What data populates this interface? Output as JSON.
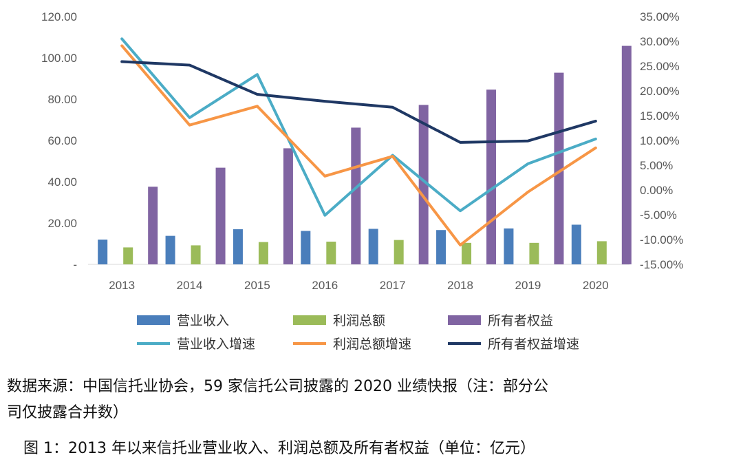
{
  "chart_data": {
    "type": "bar+line",
    "categories": [
      "2013",
      "2014",
      "2015",
      "2016",
      "2017",
      "2018",
      "2019",
      "2020"
    ],
    "bar_series": [
      {
        "name": "营业收入",
        "color": "#4A7EBB",
        "values": [
          12.0,
          13.8,
          17.0,
          16.2,
          17.2,
          16.6,
          17.4,
          19.2
        ]
      },
      {
        "name": "利润总额",
        "color": "#9BBB59",
        "values": [
          8.2,
          9.2,
          10.8,
          11.0,
          11.8,
          10.4,
          10.4,
          11.2
        ]
      },
      {
        "name": "所有者权益",
        "color": "#8064A2",
        "values": [
          37.6,
          46.8,
          56.2,
          66.2,
          77.2,
          84.6,
          92.8,
          105.8
        ]
      }
    ],
    "line_series": [
      {
        "name": "营业收入增速",
        "color": "#4BACC6",
        "values": [
          30.5,
          14.6,
          23.3,
          -5.1,
          7.0,
          -4.2,
          5.3,
          10.3
        ]
      },
      {
        "name": "利润总额增速",
        "color": "#F79646",
        "values": [
          29.1,
          13.1,
          16.9,
          2.8,
          6.8,
          -11.1,
          -0.4,
          8.5
        ]
      },
      {
        "name": "所有者权益增速",
        "color": "#1F3864",
        "values": [
          25.9,
          25.2,
          19.3,
          17.9,
          16.7,
          9.6,
          9.9,
          13.9
        ]
      }
    ],
    "y_left": {
      "range": [
        0,
        120
      ],
      "ticks": [
        "-",
        "20.00",
        "40.00",
        "60.00",
        "80.00",
        "100.00",
        "120.00"
      ]
    },
    "y_right": {
      "range": [
        -15,
        35
      ],
      "ticks": [
        "-15.00%",
        "-10.00%",
        "-5.00%",
        "0.00%",
        "5.00%",
        "10.00%",
        "15.00%",
        "20.00%",
        "25.00%",
        "30.00%",
        "35.00%"
      ]
    },
    "legend_position": "bottom"
  },
  "captions": {
    "source_line1": "数据来源：中国信托业协会，59 家信托公司披露的 2020 业绩快报（注：部分公",
    "source_line2": "司仅披露合并数）",
    "figure_title": "图 1：2013 年以来信托业营业收入、利润总额及所有者权益（单位：亿元）"
  }
}
